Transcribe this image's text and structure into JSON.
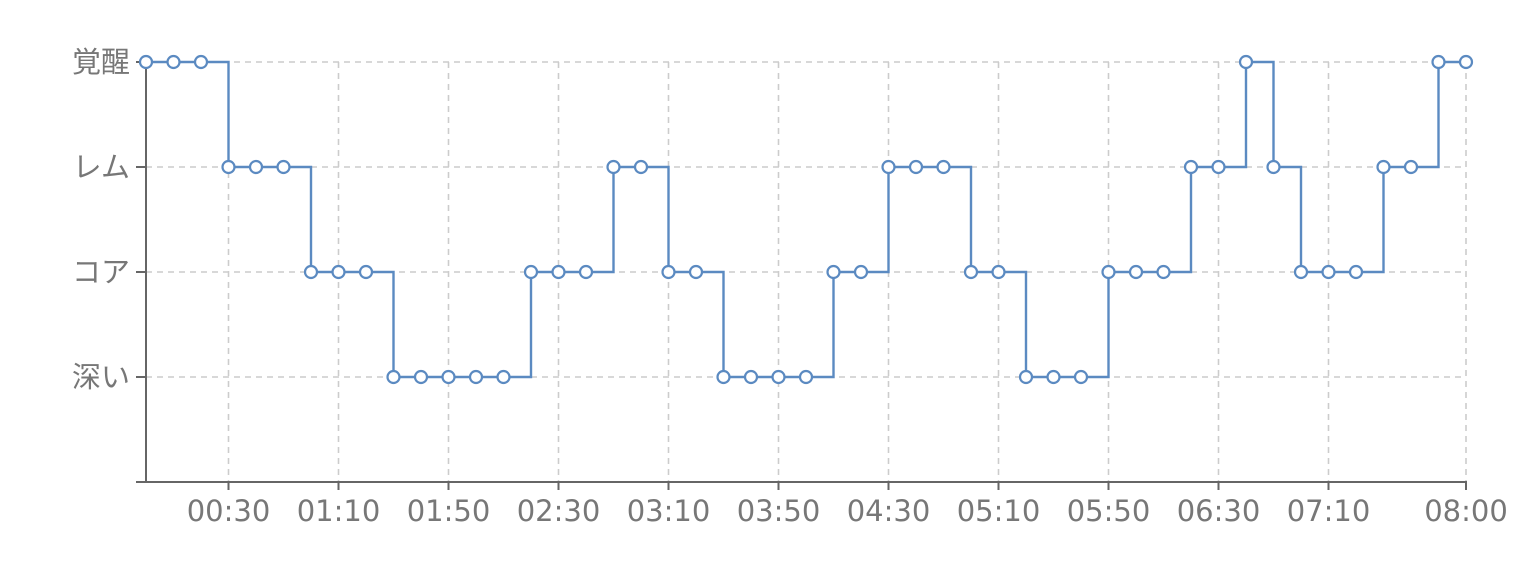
{
  "chart_data": {
    "type": "line",
    "step": true,
    "colors": {
      "series": "#5b8ac1",
      "grid": "#cccccc",
      "axis": "#666666",
      "label": "#777777"
    },
    "grid": true,
    "y_categories": [
      "深い",
      "コア",
      "レム",
      "覚醒"
    ],
    "x_tick_labels": [
      "00:30",
      "01:10",
      "01:50",
      "02:30",
      "03:10",
      "03:50",
      "04:30",
      "05:10",
      "05:50",
      "06:30",
      "07:10",
      "08:00"
    ],
    "x_range": [
      "00:00",
      "08:00"
    ],
    "series": [
      {
        "points": [
          {
            "t": "00:00",
            "stage": "覚醒"
          },
          {
            "t": "00:10",
            "stage": "覚醒"
          },
          {
            "t": "00:20",
            "stage": "覚醒"
          },
          {
            "t": "00:30",
            "stage": "レム"
          },
          {
            "t": "00:40",
            "stage": "レム"
          },
          {
            "t": "00:50",
            "stage": "レム"
          },
          {
            "t": "01:00",
            "stage": "コア"
          },
          {
            "t": "01:10",
            "stage": "コア"
          },
          {
            "t": "01:20",
            "stage": "コア"
          },
          {
            "t": "01:30",
            "stage": "深い"
          },
          {
            "t": "01:40",
            "stage": "深い"
          },
          {
            "t": "01:50",
            "stage": "深い"
          },
          {
            "t": "02:00",
            "stage": "深い"
          },
          {
            "t": "02:10",
            "stage": "深い"
          },
          {
            "t": "02:20",
            "stage": "コア"
          },
          {
            "t": "02:30",
            "stage": "コア"
          },
          {
            "t": "02:40",
            "stage": "コア"
          },
          {
            "t": "02:50",
            "stage": "レム"
          },
          {
            "t": "03:00",
            "stage": "レム"
          },
          {
            "t": "03:10",
            "stage": "コア"
          },
          {
            "t": "03:20",
            "stage": "コア"
          },
          {
            "t": "03:30",
            "stage": "深い"
          },
          {
            "t": "03:40",
            "stage": "深い"
          },
          {
            "t": "03:50",
            "stage": "深い"
          },
          {
            "t": "04:00",
            "stage": "深い"
          },
          {
            "t": "04:10",
            "stage": "コア"
          },
          {
            "t": "04:20",
            "stage": "コア"
          },
          {
            "t": "04:30",
            "stage": "レム"
          },
          {
            "t": "04:40",
            "stage": "レム"
          },
          {
            "t": "04:50",
            "stage": "レム"
          },
          {
            "t": "05:00",
            "stage": "コア"
          },
          {
            "t": "05:10",
            "stage": "コア"
          },
          {
            "t": "05:20",
            "stage": "深い"
          },
          {
            "t": "05:30",
            "stage": "深い"
          },
          {
            "t": "05:40",
            "stage": "深い"
          },
          {
            "t": "05:50",
            "stage": "コア"
          },
          {
            "t": "06:00",
            "stage": "コア"
          },
          {
            "t": "06:10",
            "stage": "コア"
          },
          {
            "t": "06:20",
            "stage": "レム"
          },
          {
            "t": "06:30",
            "stage": "レム"
          },
          {
            "t": "06:40",
            "stage": "覚醒"
          },
          {
            "t": "06:50",
            "stage": "レム"
          },
          {
            "t": "07:00",
            "stage": "コア"
          },
          {
            "t": "07:10",
            "stage": "コア"
          },
          {
            "t": "07:20",
            "stage": "コア"
          },
          {
            "t": "07:30",
            "stage": "レム"
          },
          {
            "t": "07:40",
            "stage": "レム"
          },
          {
            "t": "07:50",
            "stage": "覚醒"
          },
          {
            "t": "08:00",
            "stage": "覚醒"
          }
        ]
      }
    ]
  }
}
